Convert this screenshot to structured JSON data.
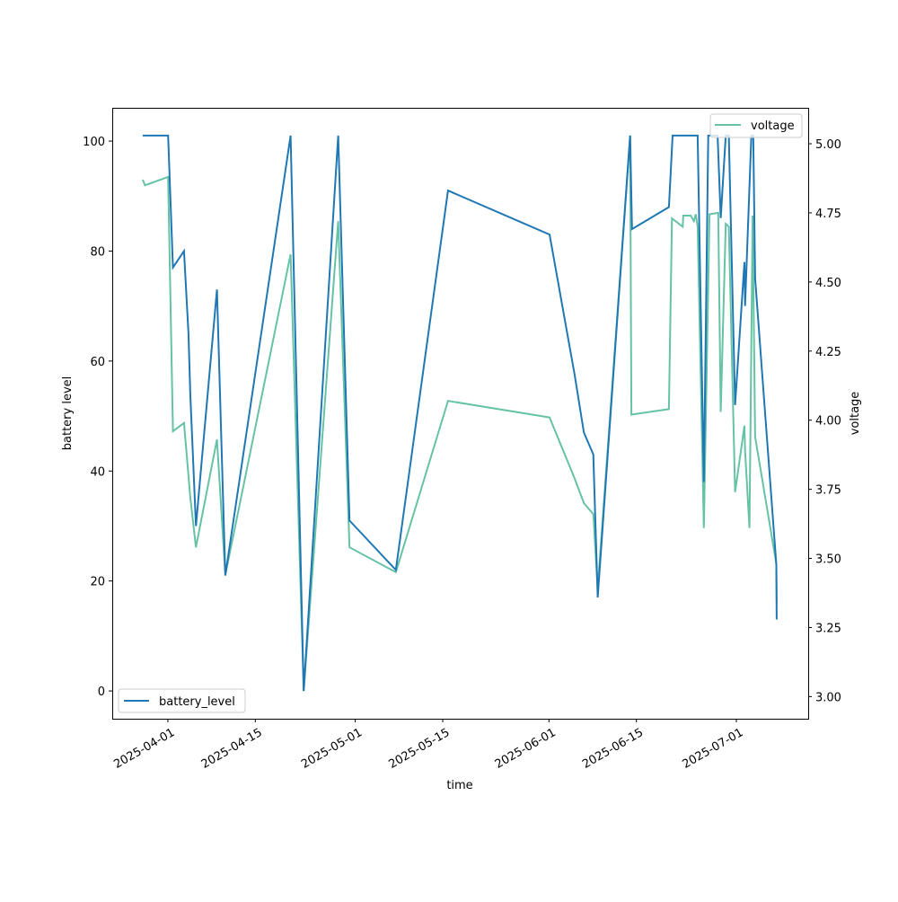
{
  "chart_data": {
    "type": "line",
    "title": "",
    "xlabel": "time",
    "ylabel": "battery level",
    "y2label": "voltage",
    "x_origin": "2025-04-01",
    "x_unit": "days since 2025-04-01",
    "xlim": [
      -8.9,
      102.5
    ],
    "ylim": [
      -5.05,
      106.05
    ],
    "y2lim": [
      2.92,
      5.13
    ],
    "x_ticks": [
      {
        "day": 0,
        "label": "2025-04-01"
      },
      {
        "day": 14,
        "label": "2025-04-15"
      },
      {
        "day": 30,
        "label": "2025-05-01"
      },
      {
        "day": 44,
        "label": "2025-05-15"
      },
      {
        "day": 61,
        "label": "2025-06-01"
      },
      {
        "day": 75,
        "label": "2025-06-15"
      },
      {
        "day": 91,
        "label": "2025-07-01"
      }
    ],
    "y_ticks": [
      "0",
      "20",
      "40",
      "60",
      "80",
      "100"
    ],
    "y2_ticks": [
      "3.00",
      "3.25",
      "3.50",
      "3.75",
      "4.00",
      "4.25",
      "4.50",
      "4.75",
      "5.00"
    ],
    "grid": false,
    "series": [
      {
        "name": "battery_level",
        "axis": "left",
        "color": "#1f77b4",
        "legend_position": "lower-left",
        "x": [
          -4.03,
          0.04,
          0.82,
          2.59,
          3.31,
          3.59,
          4.5,
          7.86,
          9.2,
          19.65,
          21.75,
          27.27,
          29.08,
          36.5,
          44.85,
          61.1,
          65.1,
          66.6,
          68.1,
          68.8,
          74.0,
          74.3,
          80.2,
          80.8,
          84.8,
          85.8,
          86.5,
          88.0,
          88.5,
          89.3,
          89.8,
          90.8,
          92.3,
          92.4,
          93.4,
          93.7,
          94.0,
          97.4,
          97.45
        ],
        "values": [
          101,
          101,
          77,
          80,
          65,
          54,
          30,
          73,
          21,
          101,
          0,
          101,
          31,
          22,
          91,
          83,
          57.6,
          47,
          43,
          17,
          101,
          84,
          88,
          101,
          101,
          38,
          101,
          101,
          86,
          101,
          101,
          52,
          78,
          70,
          101,
          101,
          75,
          23,
          13
        ]
      },
      {
        "name": "voltage",
        "axis": "right",
        "color": "#66c2a5",
        "legend_position": "upper-right",
        "x": [
          -4.03,
          -3.65,
          0.04,
          0.82,
          2.59,
          3.07,
          3.59,
          4.5,
          7.86,
          9.2,
          19.65,
          21.75,
          27.27,
          29.08,
          36.5,
          44.85,
          61.1,
          65.1,
          66.6,
          68.1,
          68.8,
          74.0,
          74.2,
          80.2,
          80.7,
          82.4,
          82.5,
          83.7,
          84.2,
          84.5,
          84.8,
          85.8,
          86.7,
          88.1,
          88.5,
          89.3,
          89.8,
          90.8,
          92.3,
          92.4,
          93.1,
          93.6,
          94.0,
          97.4,
          97.45
        ],
        "values": [
          4.87,
          4.85,
          4.88,
          3.96,
          3.99,
          3.86,
          3.72,
          3.54,
          3.93,
          3.44,
          4.6,
          3.02,
          4.72,
          3.54,
          3.45,
          4.07,
          4.01,
          3.79,
          3.7,
          3.66,
          3.39,
          5.03,
          4.02,
          4.04,
          4.73,
          4.7,
          4.74,
          4.74,
          4.72,
          4.745,
          4.7,
          3.61,
          4.745,
          4.75,
          4.03,
          4.71,
          4.7,
          3.74,
          3.98,
          3.89,
          3.61,
          4.74,
          3.94,
          3.48,
          3.34
        ]
      }
    ]
  }
}
